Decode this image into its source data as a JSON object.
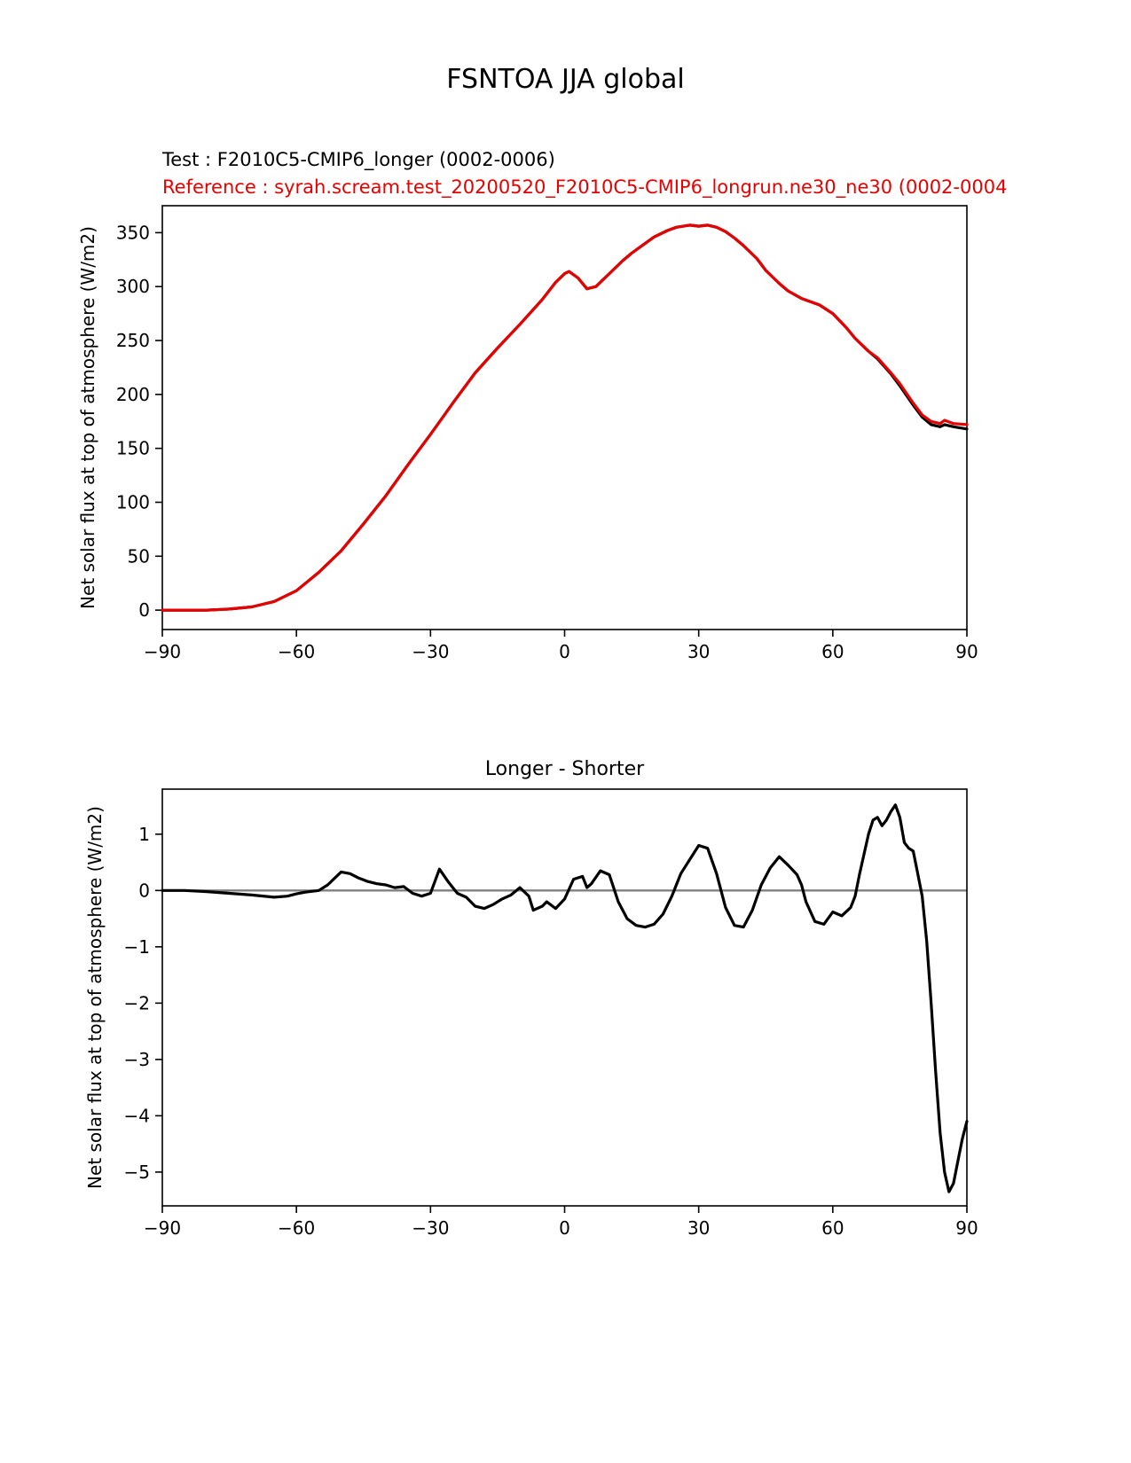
{
  "page_title": "FSNTOA JJA global",
  "legend": {
    "test_label": "Test : F2010C5-CMIP6_longer (0002-0006)",
    "reference_label": "Reference : syrah.scream.test_20200520_F2010C5-CMIP6_longrun.ne30_ne30 (0002-0004",
    "test_color": "#000000",
    "reference_color": "#e60000"
  },
  "chart_data": [
    {
      "type": "line",
      "title": "FSNTOA JJA global",
      "xlabel": "",
      "ylabel": "Net solar flux at top of atmosphere (W/m2)",
      "xlim": [
        -90,
        90
      ],
      "ylim": [
        -18,
        375
      ],
      "xticks": [
        -90,
        -60,
        -30,
        0,
        30,
        60,
        90
      ],
      "xtick_labels": [
        "−90",
        "−60",
        "−30",
        "0",
        "30",
        "60",
        "90"
      ],
      "yticks": [
        0,
        50,
        100,
        150,
        200,
        250,
        300,
        350
      ],
      "ytick_labels": [
        "0",
        "50",
        "100",
        "150",
        "200",
        "250",
        "300",
        "350"
      ],
      "grid": false,
      "legend_position": "above-left",
      "zero_line": false,
      "x": [
        -90,
        -85,
        -80,
        -75,
        -70,
        -65,
        -60,
        -55,
        -50,
        -45,
        -40,
        -35,
        -30,
        -25,
        -20,
        -15,
        -10,
        -5,
        -2,
        0,
        1,
        3,
        5,
        7,
        10,
        13,
        15,
        18,
        20,
        23,
        25,
        28,
        30,
        32,
        34,
        36,
        38,
        40,
        43,
        45,
        48,
        50,
        53,
        55,
        57,
        60,
        63,
        65,
        68,
        70,
        73,
        75,
        78,
        80,
        82,
        84,
        85,
        87,
        90
      ],
      "series": [
        {
          "id": "test",
          "name": "Test : F2010C5-CMIP6_longer (0002-0006)",
          "color": "#000000",
          "values": [
            0,
            0,
            0,
            1,
            3,
            8,
            18,
            35,
            55,
            80,
            106,
            135,
            163,
            192,
            220,
            243,
            265,
            288,
            304,
            312,
            314,
            308,
            298,
            300,
            312,
            324,
            331,
            340,
            346,
            352,
            355,
            357,
            356,
            357,
            355,
            351,
            345,
            338,
            326,
            315,
            303,
            296,
            289,
            286,
            283,
            275,
            262,
            252,
            240,
            233,
            219,
            208,
            190,
            179,
            172,
            170,
            172,
            170,
            168
          ]
        },
        {
          "id": "reference",
          "name": "Reference : syrah.scream.test_20200520_F2010C5-CMIP6_longrun.ne30_ne30 (0002-0004",
          "color": "#e60000",
          "values": [
            0,
            0,
            0,
            1,
            3,
            8,
            18,
            35,
            55,
            80,
            106,
            135,
            163,
            192,
            220,
            243,
            265,
            288,
            304,
            312,
            314,
            308,
            298,
            300,
            312,
            324,
            331,
            340,
            346,
            352,
            355,
            357,
            356,
            357,
            355,
            351,
            345,
            338,
            326,
            315,
            303,
            296,
            289,
            286,
            283,
            275,
            262,
            252,
            240,
            234,
            220,
            210,
            192,
            181,
            175,
            173,
            176,
            173,
            172
          ]
        }
      ]
    },
    {
      "type": "line",
      "title": "Longer - Shorter",
      "xlabel": "",
      "ylabel": "Net solar flux at top of atmosphere (W/m2)",
      "xlim": [
        -90,
        90
      ],
      "ylim": [
        -5.6,
        1.8
      ],
      "xticks": [
        -90,
        -60,
        -30,
        0,
        30,
        60,
        90
      ],
      "xtick_labels": [
        "−90",
        "−60",
        "−30",
        "0",
        "30",
        "60",
        "90"
      ],
      "yticks": [
        1,
        0,
        -1,
        -2,
        -3,
        -4,
        -5
      ],
      "ytick_labels": [
        "1",
        "0",
        "−1",
        "−2",
        "−3",
        "−4",
        "−5"
      ],
      "grid": false,
      "zero_line": true,
      "zero_line_color": "#808080",
      "x": [
        -90,
        -85,
        -80,
        -75,
        -70,
        -65,
        -62,
        -60,
        -58,
        -55,
        -53,
        -50,
        -48,
        -46,
        -44,
        -42,
        -40,
        -38,
        -36,
        -34,
        -32,
        -30,
        -28,
        -26,
        -24,
        -22,
        -20,
        -18,
        -16,
        -14,
        -12,
        -10,
        -8,
        -7,
        -5,
        -4,
        -2,
        0,
        2,
        4,
        5,
        6,
        8,
        10,
        12,
        14,
        16,
        18,
        20,
        22,
        24,
        26,
        28,
        30,
        32,
        34,
        36,
        38,
        40,
        42,
        44,
        46,
        48,
        50,
        52,
        53,
        54,
        56,
        58,
        60,
        62,
        64,
        65,
        66,
        68,
        69,
        70,
        71,
        72,
        73,
        74,
        75,
        76,
        77,
        78,
        79,
        80,
        81,
        82,
        83,
        84,
        85,
        86,
        87,
        88,
        89,
        90
      ],
      "series": [
        {
          "id": "difference",
          "name": "Longer - Shorter",
          "color": "#000000",
          "values": [
            0.0,
            0.0,
            -0.02,
            -0.05,
            -0.08,
            -0.12,
            -0.1,
            -0.06,
            -0.03,
            0.0,
            0.1,
            0.33,
            0.3,
            0.22,
            0.16,
            0.12,
            0.1,
            0.05,
            0.07,
            -0.05,
            -0.1,
            -0.05,
            0.38,
            0.15,
            -0.05,
            -0.12,
            -0.28,
            -0.32,
            -0.25,
            -0.15,
            -0.08,
            0.05,
            -0.1,
            -0.35,
            -0.28,
            -0.2,
            -0.32,
            -0.15,
            0.2,
            0.25,
            0.05,
            0.12,
            0.35,
            0.28,
            -0.2,
            -0.5,
            -0.62,
            -0.65,
            -0.6,
            -0.42,
            -0.1,
            0.3,
            0.55,
            0.8,
            0.75,
            0.3,
            -0.3,
            -0.62,
            -0.65,
            -0.35,
            0.1,
            0.4,
            0.6,
            0.45,
            0.28,
            0.1,
            -0.2,
            -0.55,
            -0.6,
            -0.38,
            -0.45,
            -0.3,
            -0.1,
            0.3,
            1.0,
            1.25,
            1.3,
            1.15,
            1.25,
            1.4,
            1.52,
            1.3,
            0.85,
            0.75,
            0.7,
            0.3,
            -0.1,
            -0.9,
            -2.0,
            -3.2,
            -4.3,
            -5.0,
            -5.35,
            -5.2,
            -4.8,
            -4.4,
            -4.1
          ]
        }
      ]
    }
  ]
}
